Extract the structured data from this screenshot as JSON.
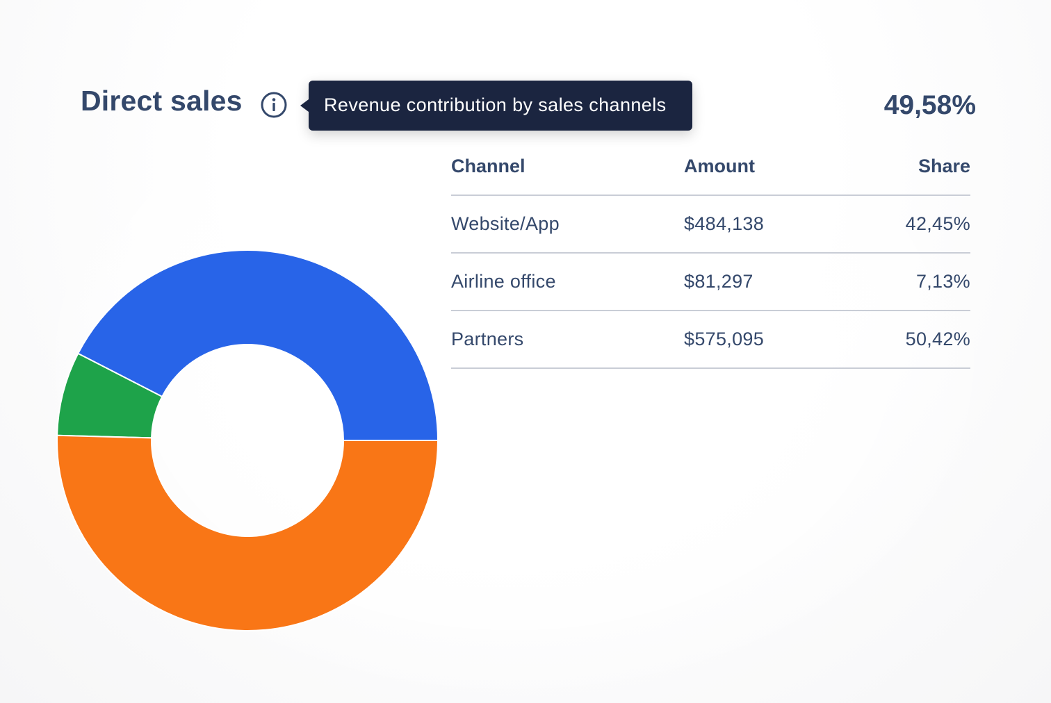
{
  "header": {
    "title": "Direct sales",
    "tooltip": "Revenue contribution by sales channels",
    "total_share": "49,58%"
  },
  "table": {
    "columns": [
      "Channel",
      "Amount",
      "Share"
    ],
    "rows": [
      {
        "channel": "Website/App",
        "amount": "$484,138",
        "share": "42,45%"
      },
      {
        "channel": "Airline office",
        "amount": "$81,297",
        "share": "7,13%"
      },
      {
        "channel": "Partners",
        "amount": "$575,095",
        "share": "50,42%"
      }
    ]
  },
  "chart_data": {
    "type": "pie",
    "variant": "donut",
    "categories": [
      "Website/App",
      "Airline office",
      "Partners"
    ],
    "values": [
      42.45,
      7.13,
      50.42
    ],
    "colors": [
      "#2864e8",
      "#1ea34a",
      "#f97616"
    ],
    "start_angle": "3 o'clock",
    "direction": "counter-clockwise"
  },
  "icons": {
    "info": "info-circle-icon"
  }
}
